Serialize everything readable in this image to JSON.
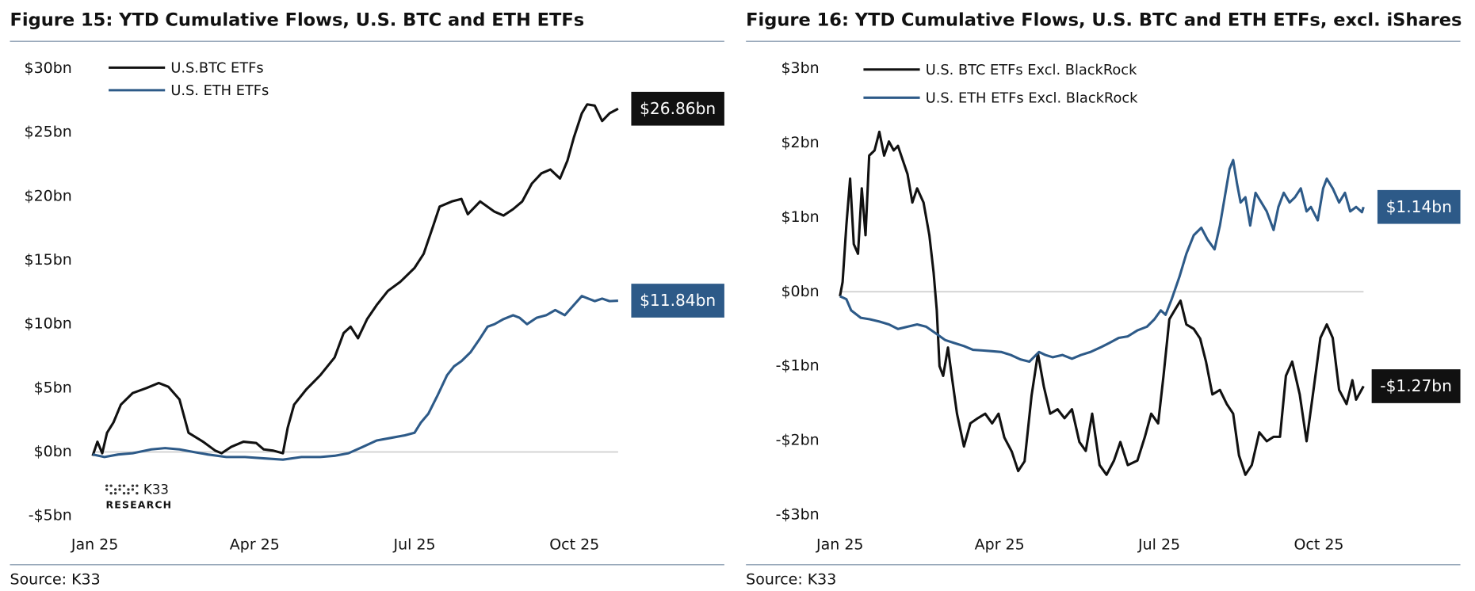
{
  "chart_data": [
    {
      "type": "line",
      "title": "Figure 15: YTD Cumulative Flows, U.S. BTC and ETH ETFs",
      "source": "Source: K33",
      "logo": [
        "K33",
        "RESEARCH"
      ],
      "legend": "upper left",
      "zero_line": true,
      "xlim": [
        -0.04,
        9.82
      ],
      "xticks": [
        {
          "value": 0,
          "label": "Jan 25"
        },
        {
          "value": 3,
          "label": "Apr 25"
        },
        {
          "value": 6,
          "label": "Jul 25"
        },
        {
          "value": 9,
          "label": "Oct 25"
        }
      ],
      "ylim": [
        -5,
        30
      ],
      "yticks": [
        {
          "value": 30,
          "label": "$30bn"
        },
        {
          "value": 25,
          "label": "$25bn"
        },
        {
          "value": 20,
          "label": "$20bn"
        },
        {
          "value": 15,
          "label": "$15bn"
        },
        {
          "value": 10,
          "label": "$10bn"
        },
        {
          "value": 5,
          "label": "$5bn"
        },
        {
          "value": 0,
          "label": "$0bn"
        },
        {
          "value": -5,
          "label": "-$5bn"
        }
      ],
      "series": [
        {
          "name": "U.S.BTC ETFs",
          "color": "#111111",
          "end_label": "$26.86bn",
          "x": [
            -0.04,
            0.05,
            0.14,
            0.23,
            0.35,
            0.49,
            0.71,
            0.97,
            1.2,
            1.38,
            1.59,
            1.76,
            2.03,
            2.26,
            2.38,
            2.56,
            2.79,
            3.03,
            3.17,
            3.35,
            3.53,
            3.62,
            3.74,
            3.97,
            4.23,
            4.5,
            4.67,
            4.8,
            4.94,
            5.11,
            5.29,
            5.5,
            5.73,
            6.0,
            6.17,
            6.35,
            6.47,
            6.7,
            6.88,
            7.0,
            7.23,
            7.5,
            7.67,
            7.85,
            8.02,
            8.2,
            8.38,
            8.55,
            8.73,
            8.87,
            8.99,
            9.14,
            9.24,
            9.38,
            9.52,
            9.66,
            9.82
          ],
          "values": [
            -0.3,
            0.8,
            -0.1,
            1.5,
            2.3,
            3.7,
            4.6,
            5.0,
            5.4,
            5.1,
            4.1,
            1.5,
            0.8,
            0.1,
            -0.1,
            0.4,
            0.8,
            0.7,
            0.2,
            0.1,
            -0.1,
            1.9,
            3.7,
            4.9,
            6.0,
            7.4,
            9.3,
            9.8,
            8.9,
            10.4,
            11.5,
            12.6,
            13.3,
            14.4,
            15.5,
            17.7,
            19.2,
            19.6,
            19.8,
            18.6,
            19.6,
            18.8,
            18.5,
            19.0,
            19.6,
            21.0,
            21.8,
            22.1,
            21.4,
            22.8,
            24.6,
            26.5,
            27.2,
            27.1,
            25.9,
            26.5,
            26.86
          ]
        },
        {
          "name": "U.S. ETH ETFs",
          "color": "#2d5a88",
          "end_label": "$11.84bn",
          "x": [
            -0.04,
            0.18,
            0.44,
            0.71,
            1.06,
            1.32,
            1.59,
            1.85,
            2.12,
            2.47,
            2.82,
            3.17,
            3.53,
            3.88,
            4.23,
            4.5,
            4.76,
            5.03,
            5.29,
            5.56,
            5.82,
            6.0,
            6.12,
            6.26,
            6.44,
            6.61,
            6.74,
            6.88,
            7.05,
            7.23,
            7.37,
            7.5,
            7.67,
            7.85,
            7.97,
            8.11,
            8.29,
            8.47,
            8.64,
            8.82,
            8.99,
            9.14,
            9.26,
            9.38,
            9.52,
            9.66,
            9.82
          ],
          "values": [
            -0.2,
            -0.4,
            -0.2,
            -0.1,
            0.2,
            0.3,
            0.2,
            0.0,
            -0.2,
            -0.4,
            -0.4,
            -0.5,
            -0.6,
            -0.4,
            -0.4,
            -0.3,
            -0.1,
            0.4,
            0.9,
            1.1,
            1.3,
            1.5,
            2.3,
            3.0,
            4.5,
            6.0,
            6.7,
            7.1,
            7.8,
            8.9,
            9.8,
            10.0,
            10.4,
            10.7,
            10.5,
            10.0,
            10.5,
            10.7,
            11.1,
            10.7,
            11.5,
            12.2,
            12.0,
            11.8,
            12.0,
            11.8,
            11.84
          ]
        }
      ]
    },
    {
      "type": "line",
      "title": "Figure 16: YTD Cumulative Flows, U.S. BTC and ETH ETFs, excl. iShares",
      "source": "Source: K33",
      "legend": "upper left",
      "zero_line": true,
      "xlim": [
        0,
        9.84
      ],
      "xticks": [
        {
          "value": 0,
          "label": "Jan 25"
        },
        {
          "value": 3,
          "label": "Apr 25"
        },
        {
          "value": 6,
          "label": "Jul 25"
        },
        {
          "value": 9,
          "label": "Oct 25"
        }
      ],
      "ylim": [
        -3,
        3
      ],
      "yticks": [
        {
          "value": 3,
          "label": "$3bn"
        },
        {
          "value": 2,
          "label": "$2bn"
        },
        {
          "value": 1,
          "label": "$1bn"
        },
        {
          "value": 0,
          "label": "$0bn"
        },
        {
          "value": -1,
          "label": "-$1bn"
        },
        {
          "value": -2,
          "label": "-$2bn"
        },
        {
          "value": -3,
          "label": "-$3bn"
        }
      ],
      "series": [
        {
          "name": "U.S. BTC ETFs Excl. BlackRock",
          "color": "#111111",
          "end_label": "-$1.27bn",
          "x": [
            0,
            0.05,
            0.12,
            0.19,
            0.26,
            0.34,
            0.41,
            0.48,
            0.55,
            0.65,
            0.74,
            0.83,
            0.92,
            1.01,
            1.09,
            1.18,
            1.27,
            1.36,
            1.45,
            1.57,
            1.68,
            1.76,
            1.82,
            1.87,
            1.94,
            2.03,
            2.1,
            2.2,
            2.33,
            2.45,
            2.59,
            2.73,
            2.86,
            2.98,
            3.09,
            3.23,
            3.35,
            3.47,
            3.6,
            3.72,
            3.83,
            3.95,
            4.09,
            4.22,
            4.36,
            4.5,
            4.62,
            4.74,
            4.88,
            5.01,
            5.15,
            5.27,
            5.41,
            5.59,
            5.73,
            5.85,
            5.98,
            6.08,
            6.19,
            6.29,
            6.4,
            6.51,
            6.65,
            6.77,
            6.88,
            7.0,
            7.14,
            7.27,
            7.39,
            7.5,
            7.62,
            7.74,
            7.88,
            8.02,
            8.15,
            8.27,
            8.38,
            8.5,
            8.64,
            8.77,
            8.91,
            9.03,
            9.15,
            9.26,
            9.38,
            9.52,
            9.63,
            9.7,
            9.84
          ],
          "values": [
            -0.06,
            0.13,
            0.89,
            1.52,
            0.64,
            0.51,
            1.39,
            0.76,
            1.83,
            1.9,
            2.15,
            1.83,
            2.02,
            1.9,
            1.96,
            1.77,
            1.58,
            1.2,
            1.39,
            1.2,
            0.76,
            0.26,
            -0.25,
            -1.0,
            -1.13,
            -0.75,
            -1.13,
            -1.64,
            -2.08,
            -1.77,
            -1.7,
            -1.64,
            -1.77,
            -1.64,
            -1.96,
            -2.15,
            -2.41,
            -2.28,
            -1.4,
            -0.83,
            -1.27,
            -1.64,
            -1.58,
            -1.7,
            -1.58,
            -2.02,
            -2.14,
            -1.64,
            -2.33,
            -2.46,
            -2.27,
            -2.02,
            -2.33,
            -2.27,
            -1.95,
            -1.64,
            -1.77,
            -1.13,
            -0.37,
            -0.25,
            -0.12,
            -0.44,
            -0.5,
            -0.63,
            -0.94,
            -1.38,
            -1.32,
            -1.51,
            -1.64,
            -2.2,
            -2.46,
            -2.33,
            -1.89,
            -2.01,
            -1.95,
            -1.95,
            -1.13,
            -0.94,
            -1.38,
            -2.01,
            -1.26,
            -0.62,
            -0.44,
            -0.62,
            -1.32,
            -1.51,
            -1.19,
            -1.45,
            -1.27
          ]
        },
        {
          "name": "U.S. ETH ETFs Excl. BlackRock",
          "color": "#2d5a88",
          "end_label": "$1.14bn",
          "x": [
            0,
            0.12,
            0.21,
            0.39,
            0.56,
            0.74,
            0.92,
            1.09,
            1.27,
            1.45,
            1.62,
            1.8,
            1.98,
            2.15,
            2.33,
            2.5,
            2.68,
            2.86,
            3.03,
            3.21,
            3.39,
            3.56,
            3.74,
            3.86,
            4.0,
            4.18,
            4.36,
            4.53,
            4.71,
            4.89,
            5.06,
            5.24,
            5.41,
            5.59,
            5.77,
            5.91,
            6.03,
            6.12,
            6.24,
            6.38,
            6.51,
            6.65,
            6.79,
            6.91,
            7.04,
            7.14,
            7.23,
            7.32,
            7.39,
            7.46,
            7.53,
            7.62,
            7.71,
            7.81,
            7.92,
            8.02,
            8.15,
            8.24,
            8.34,
            8.45,
            8.55,
            8.66,
            8.77,
            8.85,
            8.98,
            9.08,
            9.15,
            9.26,
            9.38,
            9.49,
            9.59,
            9.7,
            9.81,
            9.84
          ],
          "values": [
            -0.06,
            -0.1,
            -0.25,
            -0.35,
            -0.37,
            -0.4,
            -0.44,
            -0.5,
            -0.47,
            -0.44,
            -0.47,
            -0.56,
            -0.65,
            -0.69,
            -0.73,
            -0.78,
            -0.79,
            -0.8,
            -0.81,
            -0.85,
            -0.91,
            -0.94,
            -0.81,
            -0.85,
            -0.88,
            -0.85,
            -0.9,
            -0.85,
            -0.81,
            -0.75,
            -0.69,
            -0.62,
            -0.6,
            -0.52,
            -0.47,
            -0.37,
            -0.25,
            -0.31,
            -0.09,
            0.2,
            0.51,
            0.76,
            0.86,
            0.7,
            0.57,
            0.89,
            1.27,
            1.65,
            1.77,
            1.46,
            1.2,
            1.27,
            0.89,
            1.33,
            1.2,
            1.08,
            0.83,
            1.14,
            1.33,
            1.2,
            1.27,
            1.39,
            1.08,
            1.14,
            0.96,
            1.39,
            1.52,
            1.39,
            1.2,
            1.33,
            1.08,
            1.14,
            1.07,
            1.14
          ]
        }
      ]
    }
  ]
}
